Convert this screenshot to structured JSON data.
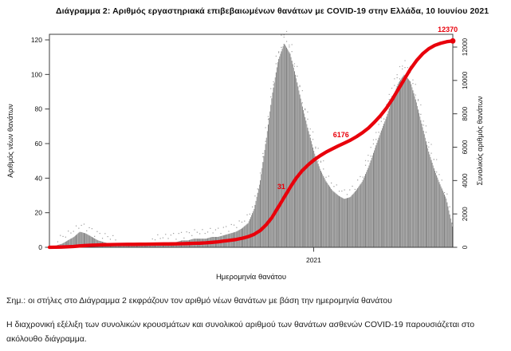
{
  "notes": [
    "Σημ.: οι στήλες στο Διάγραμμα 2 εκφράζουν τον αριθμό νέων θανάτων με βάση την ημερομηνία θανάτου",
    "Η διαχρονική εξέλιξη των συνολικών κρουσμάτων και συνολικού αριθμού των θανάτων ασθενών COVID-19 παρουσιάζεται στο ακόλουθο διάγραμμα."
  ],
  "chart_data": {
    "type": "bar",
    "title": "Διάγραμμα 2: Αριθμός εργαστηριακά επιβεβαιωμένων θανάτων με COVID-19 στην Ελλάδα, 10 Ιουνίου 2021",
    "xlabel": "Ημερομηνία θανάτου",
    "x_ticks": [
      {
        "label": "2021",
        "f": 0.655
      }
    ],
    "left_axis": {
      "label": "Αριθμός νέων θανάτων",
      "min": 0,
      "max": 120,
      "ticks": [
        0,
        20,
        40,
        60,
        80,
        100,
        120
      ]
    },
    "right_axis": {
      "label": "Συνολικός αριθμός θανάτων",
      "min": 0,
      "max": 12000,
      "ticks": [
        0,
        2000,
        4000,
        6000,
        8000,
        10000,
        12000
      ]
    },
    "grid": false,
    "legend": "none",
    "bar_color": "#8a8a8a",
    "line_color": "#e8000b",
    "series": [
      {
        "name": "Αριθμός νέων θανάτων (ανά ημέρα)",
        "type": "bar",
        "values": [
          0,
          1,
          2,
          4,
          6,
          9,
          8,
          6,
          4,
          3,
          2,
          1,
          1,
          1,
          1,
          1,
          1,
          1,
          2,
          2,
          3,
          3,
          4,
          4,
          5,
          5,
          5,
          6,
          6,
          7,
          8,
          9,
          11,
          14,
          22,
          38,
          62,
          88,
          108,
          118,
          112,
          98,
          82,
          68,
          55,
          45,
          38,
          33,
          30,
          28,
          29,
          33,
          38,
          46,
          56,
          66,
          75,
          86,
          95,
          100,
          96,
          84,
          70,
          56,
          45,
          36,
          28,
          12
        ]
      },
      {
        "name": "Συνολικός αριθμός θανάτων",
        "type": "line",
        "values": [
          0,
          5,
          15,
          30,
          50,
          80,
          105,
          125,
          140,
          152,
          160,
          166,
          170,
          175,
          179,
          183,
          188,
          193,
          196,
          199,
          202,
          206,
          215,
          225,
          237,
          250,
          270,
          295,
          330,
          380,
          420,
          470,
          540,
          635,
          780,
          1000,
          1350,
          1800,
          2400,
          3000,
          3600,
          4150,
          4600,
          4950,
          5250,
          5500,
          5720,
          5900,
          6080,
          6250,
          6420,
          6630,
          6870,
          7150,
          7500,
          7900,
          8350,
          8900,
          9500,
          10100,
          10700,
          11200,
          11600,
          11900,
          12100,
          12230,
          12320,
          12370
        ]
      }
    ],
    "annotations": [
      {
        "label": "31",
        "fx": 0.575,
        "value": 3500
      },
      {
        "label": "6176",
        "fx": 0.723,
        "value": 6600
      },
      {
        "label": "12370",
        "fx": 1.012,
        "value": 12900,
        "anchor": "end"
      }
    ]
  }
}
